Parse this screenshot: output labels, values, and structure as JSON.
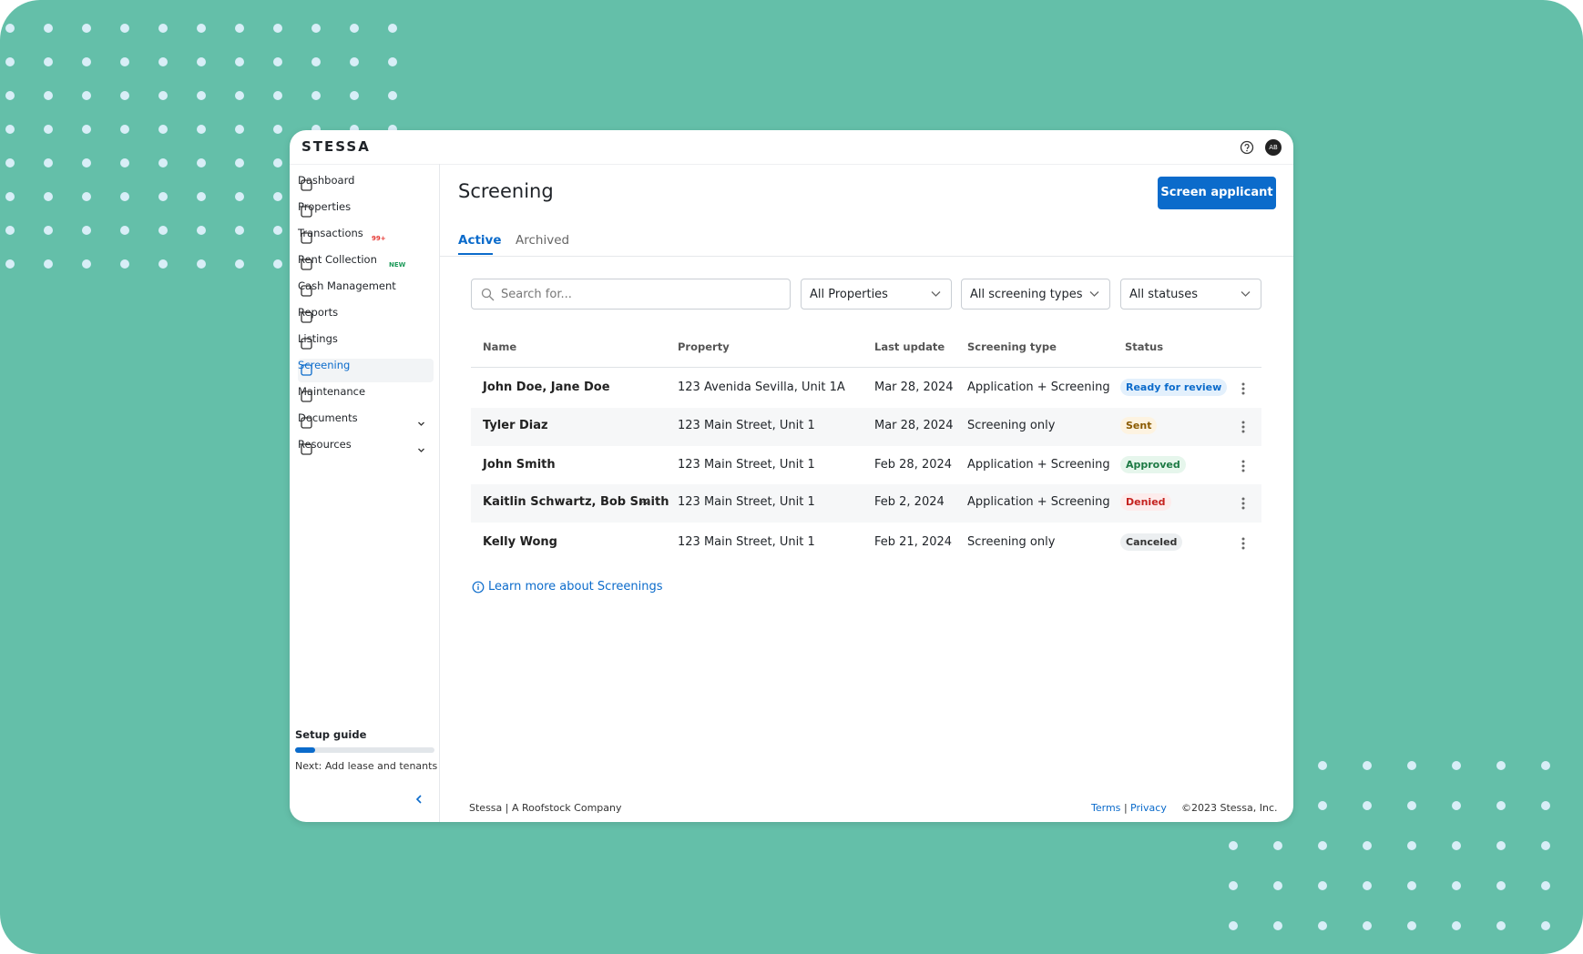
{
  "header": {
    "brand": "STESSA",
    "avatar": "AB"
  },
  "sidebar": {
    "items": [
      {
        "label": "Dashboard"
      },
      {
        "label": "Properties"
      },
      {
        "label": "Transactions",
        "badge": "99+"
      },
      {
        "label": "Rent Collection",
        "badge": "NEW"
      },
      {
        "label": "Cash Management"
      },
      {
        "label": "Reports"
      },
      {
        "label": "Listings"
      },
      {
        "label": "Screening"
      },
      {
        "label": "Maintenance"
      },
      {
        "label": "Documents"
      },
      {
        "label": "Resources"
      }
    ],
    "setup_guide": {
      "title": "Setup guide",
      "next": "Next: Add lease and tenants"
    }
  },
  "page": {
    "title": "Screening",
    "button": "Screen applicant",
    "tabs": [
      "Active",
      "Archived"
    ]
  },
  "filters": {
    "search_placeholder": "Search for...",
    "selects": [
      "All Properties",
      "All screening types",
      "All statuses"
    ]
  },
  "table": {
    "columns": [
      "Name",
      "Property",
      "Last update",
      "Screening type",
      "Status"
    ],
    "rows": [
      [
        "John Doe, Jane Doe",
        "123 Avenida Sevilla, Unit 1A",
        "Mar 28, 2024",
        "Application + Screening",
        "Ready for review"
      ],
      [
        "Tyler Diaz",
        "123 Main Street, Unit 1",
        "Mar 28, 2024",
        "Screening only",
        "Sent"
      ],
      [
        "John Smith",
        "123 Main Street, Unit 1",
        "Feb 28, 2024",
        "Application + Screening",
        "Approved"
      ],
      [
        "Kaitlin Schwartz, Bob Smith",
        "123 Main Street, Unit 1",
        "Feb 2, 2024",
        "Application + Screening",
        "Denied"
      ],
      [
        "Kelly Wong",
        "123 Main Street, Unit 1",
        "Feb 21, 2024",
        "Screening only",
        "Canceled"
      ]
    ],
    "extra_applicants": {
      "row": 3,
      "label": "+2"
    }
  },
  "learn_more": "Learn more about Screenings",
  "footer": {
    "company": "Stessa | A Roofstock Company",
    "terms": "Terms",
    "separator": "|",
    "privacy": "Privacy",
    "copyright": "©2023 Stessa, Inc."
  }
}
